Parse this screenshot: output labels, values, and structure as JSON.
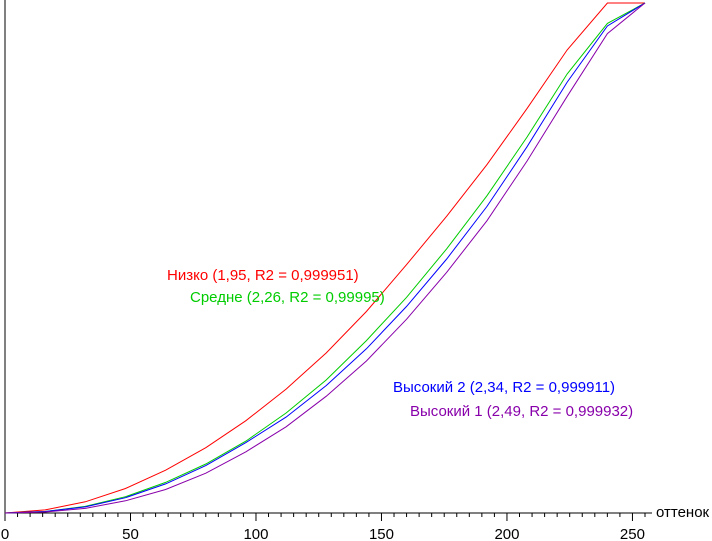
{
  "chart_data": {
    "type": "line",
    "xlabel": "оттенок",
    "ylabel": "",
    "xlim": [
      0,
      255
    ],
    "ylim": [
      0,
      1
    ],
    "xticks": [
      0,
      50,
      100,
      150,
      200,
      250
    ],
    "xtick_labels": [
      "0",
      "50",
      "100",
      "150",
      "200",
      "250"
    ],
    "minor_xtick_step": 5,
    "grid": false,
    "legend": "inline annotations",
    "x": [
      0,
      16,
      32,
      48,
      64,
      80,
      96,
      112,
      128,
      144,
      160,
      176,
      192,
      208,
      224,
      240,
      255
    ],
    "series": [
      {
        "name": "Низко (1,95, R2 = 0,999951)",
        "color": "#ff0000",
        "values": [
          0,
          0.006,
          0.022,
          0.048,
          0.084,
          0.128,
          0.181,
          0.243,
          0.314,
          0.395,
          0.487,
          0.582,
          0.683,
          0.793,
          0.908,
          1.0,
          1.0
        ]
      },
      {
        "name": "Средне (2,26, R2 = 0,99995)",
        "color": "#00cc00",
        "values": [
          0,
          0.003,
          0.013,
          0.032,
          0.06,
          0.096,
          0.141,
          0.196,
          0.261,
          0.338,
          0.423,
          0.518,
          0.622,
          0.737,
          0.861,
          0.96,
          1.0
        ]
      },
      {
        "name": "Высокий 2 (2,34, R2 = 0,999911)",
        "color": "#0000ff",
        "values": [
          0,
          0.003,
          0.012,
          0.03,
          0.057,
          0.093,
          0.138,
          0.188,
          0.25,
          0.322,
          0.405,
          0.498,
          0.601,
          0.718,
          0.845,
          0.955,
          1.0
        ]
      },
      {
        "name": "Высокий 1 (2,49, R2 = 0,999932)",
        "color": "#8800aa",
        "values": [
          0,
          0.002,
          0.009,
          0.024,
          0.046,
          0.078,
          0.12,
          0.169,
          0.229,
          0.298,
          0.38,
          0.472,
          0.573,
          0.69,
          0.817,
          0.94,
          1.0
        ]
      }
    ]
  }
}
